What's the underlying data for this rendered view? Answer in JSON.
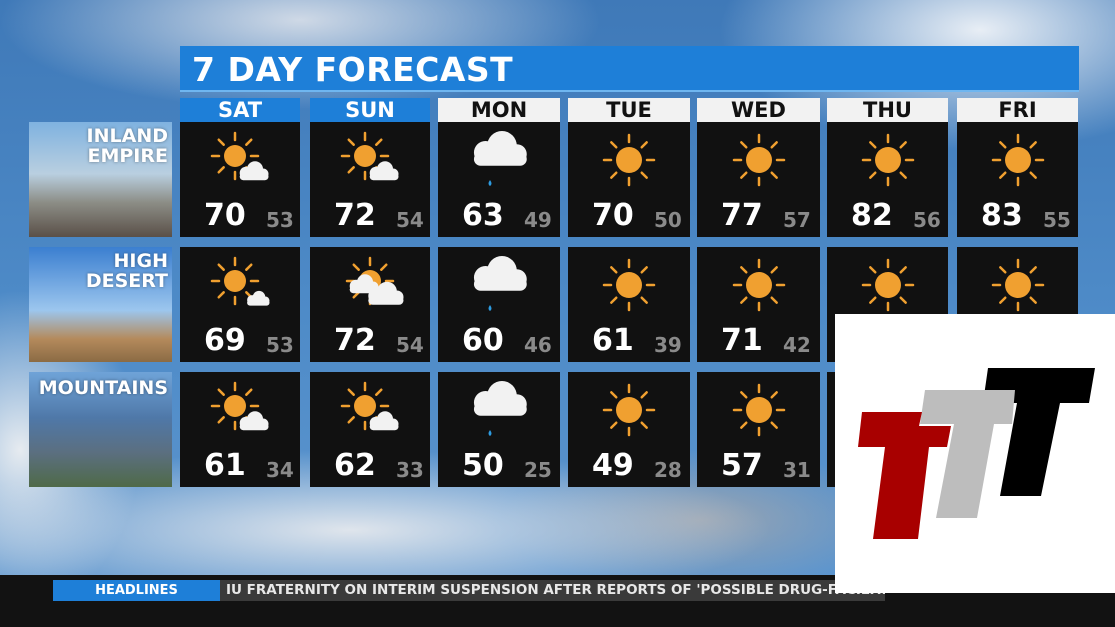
{
  "title": "7 DAY FORECAST",
  "days": [
    "SAT",
    "SUN",
    "MON",
    "TUE",
    "WED",
    "THU",
    "FRI"
  ],
  "regions": [
    {
      "name_line1": "INLAND",
      "name_line2": "EMPIRE",
      "forecast": [
        {
          "icon": "mostly-sunny",
          "hi": "70",
          "lo": "53"
        },
        {
          "icon": "mostly-sunny",
          "hi": "72",
          "lo": "54"
        },
        {
          "icon": "rain-cloud",
          "hi": "63",
          "lo": "49"
        },
        {
          "icon": "sunny",
          "hi": "70",
          "lo": "50"
        },
        {
          "icon": "sunny",
          "hi": "77",
          "lo": "57"
        },
        {
          "icon": "sunny",
          "hi": "82",
          "lo": "56"
        },
        {
          "icon": "sunny",
          "hi": "83",
          "lo": "55"
        }
      ]
    },
    {
      "name_line1": "HIGH",
      "name_line2": "DESERT",
      "forecast": [
        {
          "icon": "sun-small-cloud",
          "hi": "69",
          "lo": "53"
        },
        {
          "icon": "partly-cloudy",
          "hi": "72",
          "lo": "54"
        },
        {
          "icon": "rain-cloud",
          "hi": "60",
          "lo": "46"
        },
        {
          "icon": "sunny",
          "hi": "61",
          "lo": "39"
        },
        {
          "icon": "sunny",
          "hi": "71",
          "lo": "42"
        },
        {
          "icon": "sunny"
        },
        {
          "icon": "sunny"
        }
      ]
    },
    {
      "name_line1": "",
      "name_line2": "MOUNTAINS",
      "forecast": [
        {
          "icon": "mostly-sunny",
          "hi": "61",
          "lo": "34"
        },
        {
          "icon": "mostly-sunny",
          "hi": "62",
          "lo": "33"
        },
        {
          "icon": "rain-cloud",
          "hi": "50",
          "lo": "25"
        },
        {
          "icon": "sunny",
          "hi": "49",
          "lo": "28"
        },
        {
          "icon": "sunny",
          "hi": "57",
          "lo": "31"
        },
        {
          "icon": "sunny"
        },
        {
          "icon": "sunny"
        }
      ]
    }
  ],
  "ticker": {
    "label": "HEADLINES",
    "headline": "IU FRATERNITY ON INTERIM SUSPENSION AFTER REPORTS OF 'POSSIBLE DRUG-FACILITA"
  },
  "logo": {
    "text": "TTT",
    "colors": [
      "#a80000",
      "#bdbdbd",
      "#000000"
    ]
  },
  "colors": {
    "accent": "#1e7fd8",
    "sun": "#f0a030",
    "panel": "#111111"
  }
}
